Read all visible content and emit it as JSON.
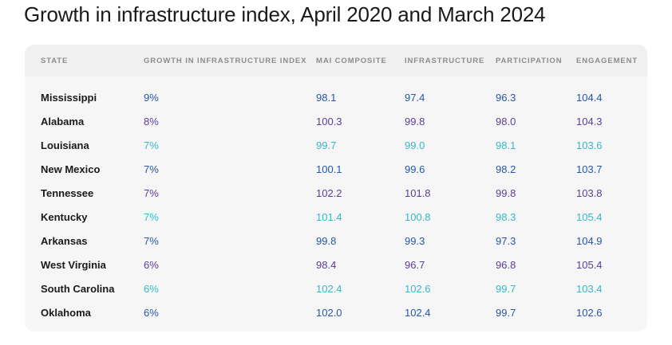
{
  "title": "Growth in infrastructure index, April 2020 and March 2024",
  "colors": {
    "blue": "#2557a6",
    "purple": "#5b3d9a",
    "teal": "#35b9c6"
  },
  "chart_data": {
    "type": "table",
    "columns": [
      "STATE",
      "GROWTH IN INFRASTRUCTURE INDEX",
      "MAI COMPOSITE",
      "INFRASTRUCTURE",
      "PARTICIPATION",
      "ENGAGEMENT"
    ],
    "rows": [
      {
        "state": "Mississippi",
        "growth": "9%",
        "mai": "98.1",
        "infrastructure": "97.4",
        "participation": "96.3",
        "engagement": "104.4",
        "color": "blue"
      },
      {
        "state": "Alabama",
        "growth": "8%",
        "mai": "100.3",
        "infrastructure": "99.8",
        "participation": "98.0",
        "engagement": "104.3",
        "color": "purple"
      },
      {
        "state": "Louisiana",
        "growth": "7%",
        "mai": "99.7",
        "infrastructure": "99.0",
        "participation": "98.1",
        "engagement": "103.6",
        "color": "teal"
      },
      {
        "state": "New Mexico",
        "growth": "7%",
        "mai": "100.1",
        "infrastructure": "99.6",
        "participation": "98.2",
        "engagement": "103.7",
        "color": "blue"
      },
      {
        "state": "Tennessee",
        "growth": "7%",
        "mai": "102.2",
        "infrastructure": "101.8",
        "participation": "99.8",
        "engagement": "103.8",
        "color": "purple"
      },
      {
        "state": "Kentucky",
        "growth": "7%",
        "mai": "101.4",
        "infrastructure": "100.8",
        "participation": "98.3",
        "engagement": "105.4",
        "color": "teal"
      },
      {
        "state": "Arkansas",
        "growth": "7%",
        "mai": "99.8",
        "infrastructure": "99.3",
        "participation": "97.3",
        "engagement": "104.9",
        "color": "blue"
      },
      {
        "state": "West Virginia",
        "growth": "6%",
        "mai": "98.4",
        "infrastructure": "96.7",
        "participation": "96.8",
        "engagement": "105.4",
        "color": "purple"
      },
      {
        "state": "South Carolina",
        "growth": "6%",
        "mai": "102.4",
        "infrastructure": "102.6",
        "participation": "99.7",
        "engagement": "103.4",
        "color": "teal"
      },
      {
        "state": "Oklahoma",
        "growth": "6%",
        "mai": "102.0",
        "infrastructure": "102.4",
        "participation": "99.7",
        "engagement": "102.6",
        "color": "blue"
      }
    ]
  }
}
